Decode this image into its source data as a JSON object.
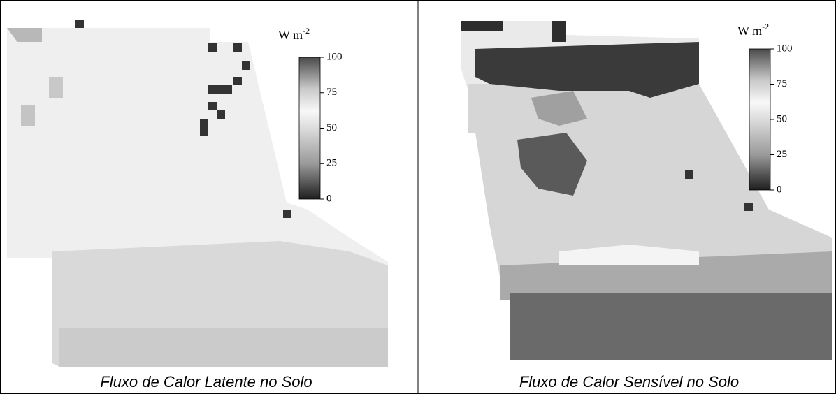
{
  "panels": [
    {
      "caption": "Fluxo de Calor Latente no Solo",
      "colorbar": {
        "unit": "W m",
        "exponent": "-2",
        "ticks": [
          0,
          25,
          50,
          75,
          100
        ]
      }
    },
    {
      "caption": "Fluxo de Calor Sensível no Solo",
      "colorbar": {
        "unit": "W m",
        "exponent": "-2",
        "ticks": [
          0,
          25,
          50,
          75,
          100
        ]
      }
    }
  ]
}
